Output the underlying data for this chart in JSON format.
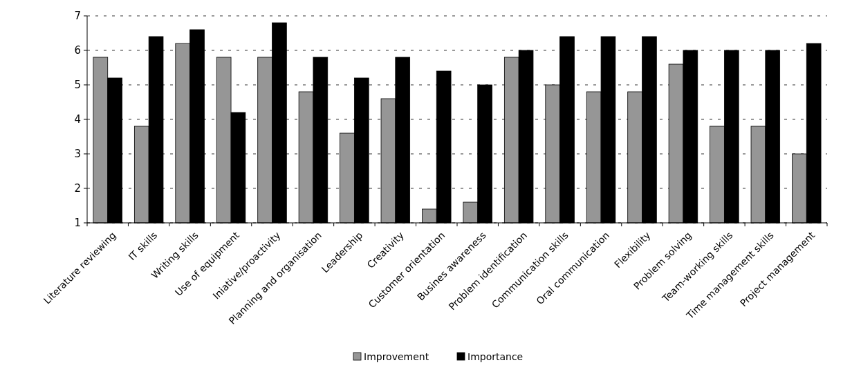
{
  "chart_data": {
    "type": "bar",
    "categories": [
      "Literature reviewing",
      "IT skills",
      "Writing  skills",
      "Use of equipment",
      "Iniative/proactivity",
      "Planning and organisation",
      "Leadership",
      "Creativity",
      "Customer orientation",
      "Busines awareness",
      "Problem identification",
      "Communication skills",
      "Oral communication",
      "Flexibility",
      "Problem solving",
      "Team-working skills",
      "Time management skills",
      "Project management"
    ],
    "series": [
      {
        "name": "Improvement",
        "color": "#969696",
        "values": [
          5.8,
          3.8,
          6.2,
          5.8,
          5.8,
          4.8,
          3.6,
          4.6,
          1.4,
          1.6,
          5.8,
          5.0,
          4.8,
          4.8,
          5.6,
          3.8,
          3.8,
          3.0
        ]
      },
      {
        "name": "Importance",
        "color": "#000000",
        "values": [
          5.2,
          6.4,
          6.6,
          4.2,
          6.8,
          5.8,
          5.2,
          5.8,
          5.4,
          5.0,
          6.0,
          6.4,
          6.4,
          6.4,
          6.0,
          6.0,
          6.0,
          6.2
        ]
      }
    ],
    "ylim": [
      1,
      7
    ],
    "yticks": [
      1,
      2,
      3,
      4,
      5,
      6,
      7
    ],
    "grid": "y",
    "legend": "bottom"
  }
}
